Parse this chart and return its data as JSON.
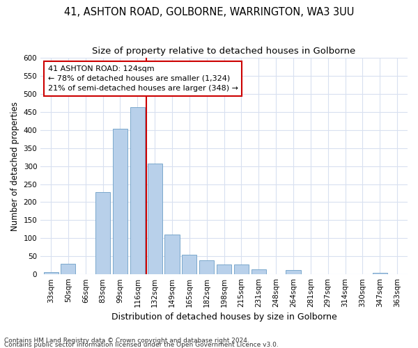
{
  "title": "41, ASHTON ROAD, GOLBORNE, WARRINGTON, WA3 3UU",
  "subtitle": "Size of property relative to detached houses in Golborne",
  "xlabel": "Distribution of detached houses by size in Golborne",
  "ylabel": "Number of detached properties",
  "categories": [
    "33sqm",
    "50sqm",
    "66sqm",
    "83sqm",
    "99sqm",
    "116sqm",
    "132sqm",
    "149sqm",
    "165sqm",
    "182sqm",
    "198sqm",
    "215sqm",
    "231sqm",
    "248sqm",
    "264sqm",
    "281sqm",
    "297sqm",
    "314sqm",
    "330sqm",
    "347sqm",
    "363sqm"
  ],
  "values": [
    6,
    30,
    0,
    228,
    403,
    463,
    307,
    110,
    54,
    38,
    28,
    28,
    13,
    0,
    11,
    0,
    0,
    0,
    0,
    5,
    0
  ],
  "bar_color": "#b8d0ea",
  "bar_edge_color": "#7aa8cc",
  "vline_color": "#cc0000",
  "vline_x": 5.5,
  "annotation_line1": "41 ASHTON ROAD: 124sqm",
  "annotation_line2": "← 78% of detached houses are smaller (1,324)",
  "annotation_line3": "21% of semi-detached houses are larger (348) →",
  "annotation_box_color": "#ffffff",
  "annotation_box_edge_color": "#cc0000",
  "ylim": [
    0,
    600
  ],
  "yticks": [
    0,
    50,
    100,
    150,
    200,
    250,
    300,
    350,
    400,
    450,
    500,
    550,
    600
  ],
  "footnote1": "Contains HM Land Registry data © Crown copyright and database right 2024.",
  "footnote2": "Contains public sector information licensed under the Open Government Licence v3.0.",
  "bg_color": "#ffffff",
  "grid_color": "#d8e0f0",
  "title_fontsize": 10.5,
  "subtitle_fontsize": 9.5,
  "xlabel_fontsize": 9,
  "ylabel_fontsize": 8.5,
  "tick_fontsize": 7.5,
  "footnote_fontsize": 6.5,
  "annotation_fontsize": 8
}
